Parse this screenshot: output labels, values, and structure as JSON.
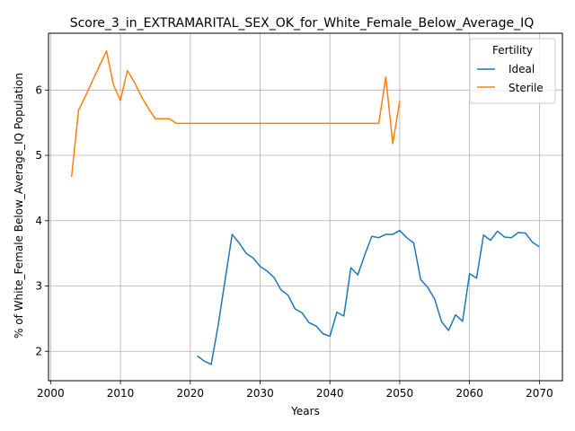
{
  "chart_data": {
    "type": "line",
    "title": "Score_3_in_EXTRAMARITAL_SEX_OK_for_White_Female_Below_Average_IQ",
    "xlabel": "Years",
    "ylabel": "% of White_Female Below_Average_IQ Population",
    "xlim": [
      1999.7,
      2073.3
    ],
    "ylim": [
      1.55,
      6.87
    ],
    "xticks": [
      2000,
      2010,
      2020,
      2030,
      2040,
      2050,
      2060,
      2070
    ],
    "yticks": [
      2,
      3,
      4,
      5,
      6
    ],
    "grid": true,
    "legend": {
      "title": "Fertility",
      "placement": "top-right"
    },
    "series": [
      {
        "name": "Ideal",
        "color": "#1f77b4",
        "x": [
          2021,
          2022,
          2023,
          2024,
          2025,
          2026,
          2027,
          2028,
          2029,
          2030,
          2031,
          2032,
          2033,
          2034,
          2035,
          2036,
          2037,
          2038,
          2039,
          2040,
          2041,
          2042,
          2043,
          2044,
          2045,
          2046,
          2047,
          2048,
          2049,
          2050,
          2051,
          2052,
          2053,
          2054,
          2055,
          2056,
          2057,
          2058,
          2059,
          2060,
          2061,
          2062,
          2063,
          2064,
          2065,
          2066,
          2067,
          2068,
          2069,
          2070
        ],
        "y": [
          1.93,
          1.85,
          1.8,
          2.4,
          3.1,
          3.79,
          3.66,
          3.5,
          3.43,
          3.3,
          3.23,
          3.13,
          2.94,
          2.86,
          2.65,
          2.59,
          2.44,
          2.39,
          2.27,
          2.23,
          2.6,
          2.54,
          3.28,
          3.17,
          3.48,
          3.76,
          3.74,
          3.79,
          3.79,
          3.85,
          3.74,
          3.66,
          3.1,
          2.98,
          2.8,
          2.45,
          2.32,
          2.56,
          2.46,
          3.19,
          3.12,
          3.78,
          3.7,
          3.84,
          3.75,
          3.74,
          3.82,
          3.81,
          3.67,
          3.6
        ]
      },
      {
        "name": "Sterile",
        "color": "#ff7f0e",
        "x": [
          2003,
          2004,
          2005,
          2006,
          2007,
          2008,
          2009,
          2010,
          2011,
          2012,
          2013,
          2014,
          2015,
          2016,
          2017,
          2018,
          2019,
          2020,
          2021,
          2022,
          2023,
          2024,
          2025,
          2026,
          2027,
          2028,
          2029,
          2030,
          2031,
          2032,
          2033,
          2034,
          2035,
          2036,
          2037,
          2038,
          2039,
          2040,
          2041,
          2042,
          2043,
          2044,
          2045,
          2046,
          2047,
          2048,
          2049,
          2050
        ],
        "y": [
          4.67,
          5.69,
          5.91,
          6.14,
          6.37,
          6.6,
          6.08,
          5.84,
          6.3,
          6.12,
          5.9,
          5.72,
          5.56,
          5.56,
          5.56,
          5.49,
          5.49,
          5.49,
          5.49,
          5.49,
          5.49,
          5.49,
          5.49,
          5.49,
          5.49,
          5.49,
          5.49,
          5.49,
          5.49,
          5.49,
          5.49,
          5.49,
          5.49,
          5.49,
          5.49,
          5.49,
          5.49,
          5.49,
          5.49,
          5.49,
          5.49,
          5.49,
          5.49,
          5.49,
          5.49,
          6.2,
          5.18,
          5.83
        ]
      }
    ]
  }
}
